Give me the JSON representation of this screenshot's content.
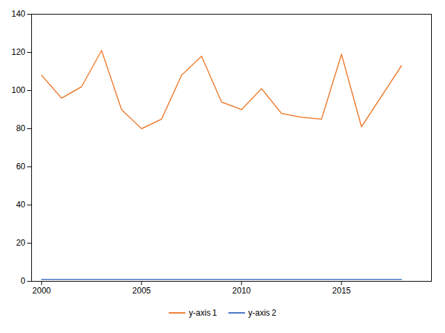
{
  "chart_data": {
    "type": "line",
    "x": [
      2000,
      2001,
      2002,
      2003,
      2004,
      2005,
      2006,
      2007,
      2008,
      2009,
      2010,
      2011,
      2012,
      2013,
      2014,
      2015,
      2016,
      2017,
      2018
    ],
    "series": [
      {
        "name": "y-axis 1",
        "color": "#ED7D31",
        "values": [
          108,
          96,
          102,
          121,
          90,
          80,
          85,
          108,
          118,
          94,
          90,
          101,
          88,
          86,
          85,
          119,
          81,
          97,
          113
        ]
      },
      {
        "name": "y-axis 2",
        "color": "#4472C4",
        "values": [
          1,
          1,
          1,
          1,
          1,
          1,
          1,
          1,
          1,
          1,
          1,
          1,
          1,
          1,
          1,
          1,
          1,
          1,
          1
        ]
      }
    ],
    "xlim": [
      1999.5,
      2019.5
    ],
    "xticks": [
      2000,
      2005,
      2010,
      2015
    ],
    "ylim": [
      0,
      140
    ],
    "yticks": [
      0,
      20,
      40,
      60,
      80,
      100,
      120,
      140
    ],
    "grid": false,
    "legend": "bottom"
  }
}
